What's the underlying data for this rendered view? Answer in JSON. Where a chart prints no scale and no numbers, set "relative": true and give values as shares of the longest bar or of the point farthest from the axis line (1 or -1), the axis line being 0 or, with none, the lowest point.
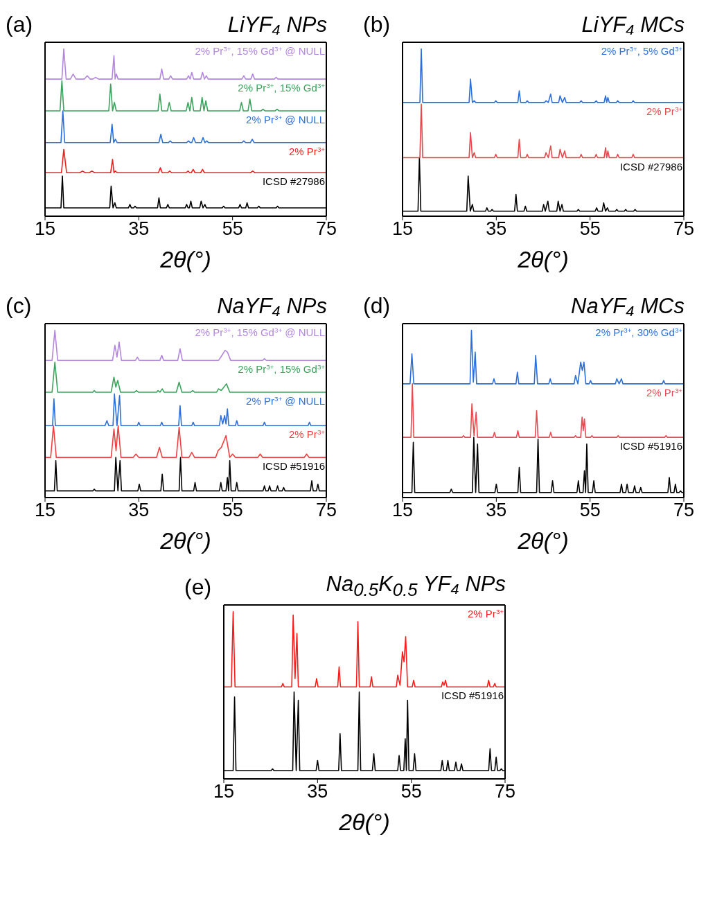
{
  "chart_data": [
    {
      "type": "line",
      "title": "LiYF₄ NPs",
      "annotations": [
        "(a)"
      ],
      "xlabel": "2θ(°)",
      "xlim": [
        15,
        75
      ],
      "xticks": [
        15,
        35,
        55,
        75
      ],
      "relative": true,
      "series": [
        {
          "name": "ICSD #27986",
          "color": "#000000",
          "x": [
            15,
            18.4,
            18.7,
            19.0,
            28.8,
            29.1,
            29.5,
            29.9,
            30.2,
            32.8,
            33.1,
            33.4,
            33.9,
            34.2,
            34.5,
            39.0,
            39.3,
            39.6,
            40.9,
            41.2,
            41.5,
            44.9,
            45.2,
            45.5,
            45.8,
            46.1,
            46.4,
            48.0,
            48.3,
            48.7,
            49.1,
            49.4,
            52.8,
            53.1,
            53.4,
            56.3,
            56.6,
            56.9,
            57.8,
            58.1,
            58.4,
            60.3,
            60.6,
            60.9,
            64.3,
            64.6,
            64.9,
            75
          ],
          "values": [
            0.05,
            0.05,
            0.24,
            0.05,
            0.05,
            0.18,
            0.05,
            0.08,
            0.05,
            0.05,
            0.07,
            0.05,
            0.05,
            0.06,
            0.05,
            0.05,
            0.11,
            0.05,
            0.05,
            0.07,
            0.05,
            0.05,
            0.07,
            0.05,
            0.05,
            0.09,
            0.05,
            0.05,
            0.09,
            0.05,
            0.07,
            0.05,
            0.05,
            0.06,
            0.05,
            0.05,
            0.07,
            0.05,
            0.05,
            0.08,
            0.05,
            0.05,
            0.06,
            0.05,
            0.05,
            0.06,
            0.05,
            0.05
          ]
        },
        {
          "name": "2% Pr$^{3+}$",
          "color": "#f21d1d",
          "x": [
            15,
            18.5,
            19.0,
            19.6,
            22.4,
            23.0,
            23.6,
            24.4,
            25.0,
            25.6,
            29.0,
            29.4,
            29.7,
            30.0,
            30.4,
            39.2,
            39.6,
            40.0,
            41.2,
            41.6,
            42.0,
            45.1,
            45.5,
            45.9,
            46.2,
            46.6,
            47.0,
            48.2,
            48.6,
            49.0,
            58.8,
            59.3,
            59.8,
            75
          ],
          "values": [
            0.26,
            0.26,
            0.4,
            0.26,
            0.26,
            0.27,
            0.26,
            0.26,
            0.27,
            0.26,
            0.26,
            0.34,
            0.26,
            0.27,
            0.26,
            0.26,
            0.29,
            0.26,
            0.26,
            0.27,
            0.26,
            0.26,
            0.27,
            0.26,
            0.26,
            0.28,
            0.26,
            0.26,
            0.28,
            0.26,
            0.26,
            0.27,
            0.26,
            0.26
          ]
        },
        {
          "name": "2% Pr$^{3+}$ @ NULL",
          "color": "#2a6fdb",
          "x": [
            15,
            18.4,
            18.8,
            19.2,
            28.9,
            29.3,
            29.65,
            30.0,
            30.4,
            39.3,
            39.7,
            40.1,
            41.3,
            41.7,
            42.1,
            45.2,
            45.6,
            46.0,
            46.3,
            46.7,
            47.1,
            48.3,
            48.7,
            49.1,
            49.5,
            49.9,
            57.0,
            57.4,
            57.8,
            58.8,
            59.2,
            59.6,
            75
          ],
          "values": [
            0.44,
            0.44,
            0.63,
            0.44,
            0.44,
            0.55,
            0.44,
            0.46,
            0.44,
            0.44,
            0.49,
            0.44,
            0.44,
            0.45,
            0.44,
            0.44,
            0.45,
            0.44,
            0.44,
            0.47,
            0.44,
            0.44,
            0.47,
            0.44,
            0.45,
            0.44,
            0.44,
            0.45,
            0.44,
            0.44,
            0.46,
            0.44,
            0.44
          ]
        },
        {
          "name": "2% Pr$^{3+}$, 15% Gd$^{3+}$",
          "color": "#3aa35c",
          "x": [
            15,
            18.2,
            18.6,
            19.0,
            28.6,
            29.0,
            29.4,
            29.8,
            30.2,
            39.1,
            39.5,
            39.9,
            41.1,
            41.5,
            41.9,
            45.1,
            45.5,
            45.9,
            46.3,
            46.7,
            48.1,
            48.5,
            48.9,
            49.3,
            49.7,
            56.5,
            56.9,
            57.3,
            58.3,
            58.7,
            59.1,
            61.1,
            61.5,
            61.9,
            64.1,
            64.5,
            64.9,
            75
          ],
          "values": [
            0.63,
            0.63,
            0.81,
            0.63,
            0.63,
            0.79,
            0.63,
            0.68,
            0.63,
            0.63,
            0.73,
            0.63,
            0.63,
            0.68,
            0.63,
            0.63,
            0.68,
            0.63,
            0.71,
            0.63,
            0.63,
            0.71,
            0.63,
            0.69,
            0.63,
            0.63,
            0.68,
            0.63,
            0.63,
            0.7,
            0.63,
            0.63,
            0.64,
            0.63,
            0.63,
            0.64,
            0.63,
            0.63
          ]
        },
        {
          "name": "2% Pr$^{3+}$, 15% Gd$^{3+}$ @ NULL",
          "color": "#b386e0",
          "x": [
            15,
            18.6,
            19.0,
            19.5,
            20.4,
            21.0,
            21.6,
            23.4,
            24.0,
            24.6,
            25.2,
            25.8,
            26.4,
            29.3,
            29.7,
            29.95,
            30.2,
            30.6,
            39.5,
            39.9,
            40.3,
            41.4,
            41.8,
            42.2,
            45.2,
            45.6,
            45.95,
            46.3,
            46.7,
            48.2,
            48.6,
            49.0,
            49.4,
            49.8,
            57.0,
            57.4,
            57.8,
            58.9,
            59.3,
            59.7,
            63.9,
            64.3,
            64.7,
            75
          ],
          "values": [
            0.82,
            0.82,
            1.0,
            0.82,
            0.82,
            0.85,
            0.82,
            0.82,
            0.84,
            0.82,
            0.82,
            0.83,
            0.82,
            0.82,
            0.96,
            0.82,
            0.85,
            0.82,
            0.82,
            0.88,
            0.82,
            0.82,
            0.84,
            0.82,
            0.82,
            0.84,
            0.82,
            0.86,
            0.82,
            0.82,
            0.86,
            0.82,
            0.84,
            0.82,
            0.82,
            0.84,
            0.82,
            0.82,
            0.85,
            0.82,
            0.82,
            0.83,
            0.82,
            0.82
          ]
        }
      ]
    },
    {
      "type": "line",
      "title": "LiYF₄ MCs",
      "annotations": [
        "(b)"
      ],
      "xlabel": "2θ(°)",
      "xlim": [
        15,
        75
      ],
      "xticks": [
        15,
        35,
        55,
        75
      ],
      "relative": true,
      "series": [
        {
          "name": "ICSD #27986",
          "color": "#000000",
          "x": [
            15,
            18.3,
            18.6,
            18.9,
            28.7,
            29.0,
            29.45,
            29.9,
            30.2,
            32.7,
            33.0,
            33.3,
            33.8,
            34.1,
            34.4,
            38.9,
            39.2,
            39.5,
            40.9,
            41.2,
            41.5,
            44.8,
            45.1,
            45.45,
            46.0,
            46.3,
            47.9,
            48.2,
            48.6,
            49.0,
            49.3,
            52.2,
            52.5,
            52.8,
            56.1,
            56.4,
            56.7,
            57.6,
            57.9,
            58.3,
            58.7,
            59.0,
            60.4,
            60.7,
            61.0,
            62.3,
            62.6,
            62.9,
            64.3,
            64.6,
            64.9,
            75
          ],
          "values": [
            0.03,
            0.03,
            0.35,
            0.03,
            0.03,
            0.24,
            0.03,
            0.07,
            0.03,
            0.03,
            0.05,
            0.03,
            0.03,
            0.04,
            0.03,
            0.03,
            0.13,
            0.03,
            0.03,
            0.06,
            0.03,
            0.03,
            0.07,
            0.03,
            0.09,
            0.03,
            0.03,
            0.09,
            0.03,
            0.07,
            0.03,
            0.03,
            0.04,
            0.03,
            0.03,
            0.05,
            0.03,
            0.03,
            0.08,
            0.03,
            0.05,
            0.03,
            0.03,
            0.04,
            0.03,
            0.03,
            0.04,
            0.03,
            0.03,
            0.04,
            0.03,
            0.03
          ]
        },
        {
          "name": "2% Pr$^{3+}$",
          "color": "#e8474c",
          "x": [
            15,
            18.7,
            19.0,
            19.3,
            29.2,
            29.5,
            29.9,
            30.3,
            30.6,
            34.6,
            34.9,
            35.2,
            39.6,
            39.9,
            40.2,
            41.3,
            41.6,
            41.9,
            45.3,
            45.6,
            46.1,
            46.6,
            46.9,
            48.3,
            48.6,
            49.1,
            49.6,
            49.9,
            52.8,
            53.1,
            53.4,
            56.0,
            56.3,
            56.6,
            58.0,
            58.3,
            58.55,
            58.8,
            59.1,
            60.6,
            60.9,
            61.2,
            63.9,
            64.2,
            64.5,
            75
          ],
          "values": [
            0.35,
            0.35,
            0.67,
            0.35,
            0.35,
            0.5,
            0.35,
            0.38,
            0.35,
            0.35,
            0.37,
            0.35,
            0.35,
            0.46,
            0.35,
            0.35,
            0.37,
            0.35,
            0.35,
            0.38,
            0.35,
            0.42,
            0.35,
            0.35,
            0.4,
            0.35,
            0.39,
            0.35,
            0.35,
            0.37,
            0.35,
            0.35,
            0.37,
            0.35,
            0.35,
            0.41,
            0.35,
            0.39,
            0.35,
            0.35,
            0.37,
            0.35,
            0.35,
            0.37,
            0.35,
            0.35
          ]
        },
        {
          "name": "2% Pr$^{3+}$, 5% Gd$^{3+}$",
          "color": "#2a6fdb",
          "x": [
            15,
            18.7,
            19.0,
            19.3,
            29.2,
            29.5,
            29.9,
            30.3,
            30.6,
            34.6,
            34.9,
            35.2,
            39.6,
            39.9,
            40.2,
            41.3,
            41.6,
            41.9,
            45.3,
            45.6,
            46.1,
            46.6,
            46.9,
            48.3,
            48.6,
            49.1,
            49.6,
            49.9,
            52.8,
            53.1,
            53.4,
            56.0,
            56.3,
            56.6,
            58.0,
            58.3,
            58.55,
            58.8,
            59.1,
            60.6,
            60.9,
            61.2,
            63.9,
            64.2,
            64.5,
            75
          ],
          "values": [
            0.68,
            0.68,
            1.0,
            0.68,
            0.68,
            0.82,
            0.68,
            0.69,
            0.68,
            0.68,
            0.69,
            0.68,
            0.68,
            0.75,
            0.68,
            0.68,
            0.69,
            0.68,
            0.68,
            0.69,
            0.68,
            0.73,
            0.68,
            0.68,
            0.72,
            0.68,
            0.71,
            0.68,
            0.68,
            0.69,
            0.68,
            0.68,
            0.69,
            0.68,
            0.68,
            0.72,
            0.68,
            0.71,
            0.68,
            0.68,
            0.69,
            0.68,
            0.68,
            0.69,
            0.68,
            0.68
          ]
        }
      ]
    },
    {
      "type": "line",
      "title": "NaYF₄ NPs",
      "annotations": [
        "(c)"
      ],
      "xlabel": "2θ(°)",
      "xlim": [
        15,
        75
      ],
      "xticks": [
        15,
        35,
        55,
        75
      ],
      "relative": true,
      "series": [
        {
          "name": "ICSD #51916",
          "color": "#000000",
          "x": [
            15,
            17.0,
            17.3,
            17.6,
            25.2,
            25.5,
            25.8,
            29.8,
            30.1,
            30.55,
            31.0,
            31.3,
            34.8,
            35.1,
            35.4,
            39.7,
            40.0,
            40.3,
            43.6,
            43.9,
            44.2,
            46.7,
            47.0,
            47.3,
            52.2,
            52.5,
            52.8,
            53.6,
            53.9,
            54.15,
            54.4,
            54.7,
            55.6,
            55.9,
            56.2,
            61.5,
            61.8,
            62.1,
            62.6,
            62.9,
            63.2,
            64.3,
            64.6,
            64.9,
            65.6,
            65.9,
            66.2,
            71.6,
            71.9,
            72.2,
            72.9,
            73.2,
            73.5,
            75
          ],
          "values": [
            0.04,
            0.04,
            0.22,
            0.04,
            0.04,
            0.05,
            0.04,
            0.04,
            0.24,
            0.04,
            0.22,
            0.04,
            0.04,
            0.08,
            0.04,
            0.04,
            0.14,
            0.04,
            0.04,
            0.24,
            0.04,
            0.04,
            0.09,
            0.04,
            0.04,
            0.09,
            0.04,
            0.04,
            0.12,
            0.04,
            0.22,
            0.04,
            0.04,
            0.09,
            0.04,
            0.04,
            0.07,
            0.04,
            0.04,
            0.07,
            0.04,
            0.04,
            0.07,
            0.04,
            0.04,
            0.06,
            0.04,
            0.04,
            0.1,
            0.04,
            0.04,
            0.08,
            0.04,
            0.04
          ]
        },
        {
          "name": "2% Pr$^{3+}$",
          "color": "#ef4040",
          "x": [
            15,
            16.2,
            16.8,
            17.4,
            29.1,
            29.7,
            30.15,
            30.6,
            31.2,
            33.8,
            34.4,
            35.0,
            38.8,
            39.4,
            40.0,
            43.0,
            43.6,
            44.2,
            45.7,
            46.3,
            46.9,
            51.4,
            51.9,
            52.6,
            53.6,
            54.4,
            55.0,
            55.6,
            60.4,
            60.9,
            61.4,
            70.3,
            70.8,
            71.3,
            75
          ],
          "values": [
            0.24,
            0.24,
            0.43,
            0.24,
            0.24,
            0.41,
            0.28,
            0.43,
            0.24,
            0.24,
            0.26,
            0.24,
            0.24,
            0.3,
            0.24,
            0.24,
            0.42,
            0.24,
            0.24,
            0.27,
            0.24,
            0.24,
            0.28,
            0.3,
            0.37,
            0.24,
            0.26,
            0.24,
            0.24,
            0.26,
            0.24,
            0.24,
            0.26,
            0.24,
            0.24
          ]
        },
        {
          "name": "2% Pr$^{3+}$ @ NULL",
          "color": "#2a6fdb",
          "x": [
            15,
            16.6,
            16.9,
            17.2,
            27.8,
            28.2,
            28.6,
            29.5,
            29.8,
            30.35,
            30.9,
            31.2,
            34.7,
            35.0,
            35.3,
            39.6,
            39.9,
            40.2,
            43.5,
            43.8,
            44.1,
            46.3,
            46.6,
            46.9,
            52.2,
            52.5,
            52.9,
            53.3,
            53.6,
            53.9,
            54.2,
            55.6,
            55.9,
            56.2,
            61.5,
            61.8,
            62.1,
            71.1,
            71.4,
            71.7,
            75
          ],
          "values": [
            0.43,
            0.43,
            0.59,
            0.43,
            0.43,
            0.46,
            0.43,
            0.43,
            0.62,
            0.43,
            0.61,
            0.43,
            0.43,
            0.45,
            0.43,
            0.43,
            0.45,
            0.43,
            0.43,
            0.55,
            0.43,
            0.43,
            0.45,
            0.43,
            0.43,
            0.49,
            0.44,
            0.49,
            0.44,
            0.53,
            0.43,
            0.43,
            0.46,
            0.43,
            0.43,
            0.45,
            0.43,
            0.43,
            0.45,
            0.43,
            0.43
          ]
        },
        {
          "name": "2% Pr$^{3+}$, 15% Gd$^{3+}$",
          "color": "#3aa35c",
          "x": [
            15,
            16.5,
            17.1,
            17.7,
            25.2,
            25.5,
            25.8,
            29.1,
            29.7,
            30.1,
            30.5,
            31.1,
            34.1,
            34.5,
            34.9,
            38.8,
            39.1,
            39.5,
            40.0,
            40.4,
            43.0,
            43.6,
            44.2,
            46.1,
            46.5,
            46.9,
            51.6,
            52.0,
            52.6,
            53.7,
            54.4,
            75
          ],
          "values": [
            0.63,
            0.63,
            0.81,
            0.63,
            0.63,
            0.64,
            0.63,
            0.63,
            0.72,
            0.66,
            0.7,
            0.63,
            0.63,
            0.64,
            0.63,
            0.63,
            0.64,
            0.63,
            0.65,
            0.63,
            0.63,
            0.69,
            0.63,
            0.63,
            0.64,
            0.63,
            0.63,
            0.65,
            0.64,
            0.68,
            0.63,
            0.63
          ]
        },
        {
          "name": "2% Pr$^{3+}$, 15% Gd$^{3+}$ @ NULL",
          "color": "#b386e0",
          "x": [
            15,
            16.5,
            17.1,
            17.7,
            29.4,
            29.9,
            30.35,
            30.8,
            31.3,
            34.3,
            34.7,
            35.1,
            39.5,
            39.9,
            40.3,
            43.3,
            43.8,
            44.3,
            52.0,
            52.5,
            53.4,
            53.9,
            54.6,
            61.4,
            61.8,
            62.2,
            75
          ],
          "values": [
            0.82,
            0.82,
            1.0,
            0.82,
            0.82,
            0.91,
            0.84,
            0.93,
            0.82,
            0.82,
            0.84,
            0.82,
            0.82,
            0.85,
            0.82,
            0.82,
            0.89,
            0.82,
            0.82,
            0.84,
            0.88,
            0.87,
            0.82,
            0.82,
            0.83,
            0.82,
            0.82
          ]
        }
      ]
    },
    {
      "type": "line",
      "title": "NaYF₄ MCs",
      "annotations": [
        "(d)"
      ],
      "xlabel": "2θ(°)",
      "xlim": [
        15,
        75
      ],
      "xticks": [
        15,
        35,
        55,
        75
      ],
      "relative": true,
      "series": [
        {
          "name": "ICSD #51916",
          "color": "#000000",
          "x": [
            15,
            17.0,
            17.3,
            17.6,
            25.1,
            25.4,
            25.7,
            29.9,
            30.2,
            30.6,
            31.0,
            31.3,
            34.7,
            35.0,
            35.3,
            39.6,
            39.9,
            40.2,
            43.6,
            43.9,
            44.2,
            46.7,
            47.0,
            47.3,
            52.2,
            52.5,
            52.8,
            53.5,
            53.8,
            54.05,
            54.3,
            54.6,
            55.5,
            55.8,
            56.1,
            61.4,
            61.7,
            62.0,
            62.6,
            62.9,
            63.2,
            64.2,
            64.5,
            64.8,
            65.5,
            65.8,
            66.1,
            71.6,
            71.9,
            72.2,
            72.9,
            73.2,
            73.5,
            74.0,
            74.3,
            74.6,
            75
          ],
          "values": [
            0.03,
            0.03,
            0.33,
            0.03,
            0.03,
            0.05,
            0.03,
            0.03,
            0.36,
            0.03,
            0.32,
            0.03,
            0.03,
            0.08,
            0.03,
            0.03,
            0.18,
            0.03,
            0.03,
            0.35,
            0.03,
            0.03,
            0.1,
            0.03,
            0.03,
            0.1,
            0.03,
            0.03,
            0.16,
            0.03,
            0.32,
            0.03,
            0.03,
            0.1,
            0.03,
            0.03,
            0.08,
            0.03,
            0.03,
            0.08,
            0.03,
            0.03,
            0.07,
            0.03,
            0.03,
            0.06,
            0.03,
            0.03,
            0.12,
            0.03,
            0.03,
            0.08,
            0.03,
            0.03,
            0.04,
            0.03,
            0.03
          ]
        },
        {
          "name": "2% Pr$^{3+}$",
          "color": "#e84a50",
          "x": [
            15,
            16.8,
            17.1,
            17.4,
            27.7,
            28.0,
            28.3,
            29.5,
            29.8,
            30.25,
            30.7,
            31.0,
            34.3,
            34.6,
            34.9,
            39.3,
            39.6,
            39.9,
            43.3,
            43.6,
            43.9,
            46.3,
            46.6,
            46.9,
            51.6,
            51.9,
            52.2,
            53.0,
            53.3,
            53.55,
            53.8,
            54.1,
            55.1,
            55.4,
            55.7,
            60.7,
            61.0,
            61.3,
            70.9,
            71.2,
            71.5,
            75
          ],
          "values": [
            0.36,
            0.36,
            0.68,
            0.36,
            0.36,
            0.37,
            0.36,
            0.36,
            0.56,
            0.37,
            0.51,
            0.36,
            0.36,
            0.39,
            0.36,
            0.36,
            0.4,
            0.36,
            0.36,
            0.52,
            0.36,
            0.36,
            0.39,
            0.36,
            0.36,
            0.37,
            0.36,
            0.36,
            0.48,
            0.4,
            0.47,
            0.36,
            0.36,
            0.37,
            0.36,
            0.36,
            0.37,
            0.36,
            0.36,
            0.37,
            0.36,
            0.36
          ]
        },
        {
          "name": "2% Pr$^{3+}$, 30% Gd$^{3+}$",
          "color": "#2a6fdb",
          "x": [
            15,
            16.6,
            17.0,
            17.4,
            29.4,
            29.7,
            30.1,
            30.5,
            30.8,
            34.2,
            34.5,
            34.8,
            39.2,
            39.5,
            39.8,
            43.1,
            43.4,
            43.8,
            46.2,
            46.5,
            46.8,
            51.6,
            51.9,
            52.4,
            53.0,
            53.35,
            53.7,
            54.1,
            54.8,
            55.1,
            55.4,
            60.4,
            60.7,
            61.2,
            61.7,
            62.0,
            70.4,
            70.7,
            71.0,
            75
          ],
          "values": [
            0.68,
            0.68,
            0.86,
            0.68,
            0.68,
            1.0,
            0.69,
            0.87,
            0.68,
            0.68,
            0.71,
            0.68,
            0.68,
            0.75,
            0.68,
            0.68,
            0.85,
            0.68,
            0.68,
            0.71,
            0.68,
            0.68,
            0.73,
            0.68,
            0.81,
            0.76,
            0.81,
            0.68,
            0.68,
            0.7,
            0.68,
            0.68,
            0.71,
            0.68,
            0.71,
            0.68,
            0.68,
            0.7,
            0.68,
            0.68
          ]
        }
      ]
    },
    {
      "type": "line",
      "title": "Na$_{0.5}$K$_{0.5}$ YF₄ NPs",
      "annotations": [
        "(e)"
      ],
      "xlabel": "2θ(°)",
      "xlim": [
        15,
        75
      ],
      "xticks": [
        15,
        35,
        55,
        75
      ],
      "relative": true,
      "series": [
        {
          "name": "ICSD #51916",
          "color": "#000000",
          "x": [
            15,
            17.0,
            17.3,
            17.6,
            25.1,
            25.4,
            25.7,
            29.7,
            30.0,
            30.45,
            30.9,
            31.2,
            34.7,
            35.0,
            35.3,
            39.5,
            39.8,
            40.1,
            43.6,
            43.9,
            44.2,
            46.7,
            47.0,
            47.3,
            52.1,
            52.4,
            52.7,
            53.4,
            53.7,
            53.95,
            54.2,
            54.5,
            55.4,
            55.7,
            56.0,
            61.3,
            61.6,
            61.9,
            62.5,
            62.8,
            63.1,
            64.2,
            64.5,
            64.8,
            65.4,
            65.7,
            66.0,
            71.5,
            71.8,
            72.1,
            72.8,
            73.1,
            73.4,
            73.9,
            74.2,
            74.5,
            75
          ],
          "values": [
            0.05,
            0.05,
            0.49,
            0.05,
            0.05,
            0.06,
            0.05,
            0.05,
            0.52,
            0.05,
            0.47,
            0.05,
            0.05,
            0.11,
            0.05,
            0.05,
            0.27,
            0.05,
            0.05,
            0.52,
            0.05,
            0.05,
            0.15,
            0.05,
            0.05,
            0.14,
            0.05,
            0.05,
            0.24,
            0.05,
            0.47,
            0.05,
            0.05,
            0.15,
            0.05,
            0.05,
            0.11,
            0.05,
            0.05,
            0.11,
            0.05,
            0.05,
            0.1,
            0.05,
            0.05,
            0.09,
            0.05,
            0.05,
            0.18,
            0.05,
            0.05,
            0.13,
            0.05,
            0.05,
            0.06,
            0.05,
            0.05
          ]
        },
        {
          "name": "2% Pr$^{3+}$",
          "color": "#ff1a1a",
          "x": [
            15,
            16.6,
            17.0,
            17.4,
            27.3,
            27.6,
            27.9,
            29.5,
            29.8,
            30.2,
            30.6,
            30.9,
            34.5,
            34.8,
            35.1,
            39.3,
            39.6,
            39.9,
            43.3,
            43.6,
            43.9,
            46.2,
            46.5,
            46.8,
            51.8,
            52.1,
            52.6,
            53.1,
            53.45,
            53.8,
            54.2,
            55.2,
            55.5,
            55.8,
            61.4,
            61.7,
            62.0,
            62.3,
            62.6,
            71.2,
            71.5,
            71.8,
            72.5,
            72.8,
            73.1,
            75
          ],
          "values": [
            0.55,
            0.55,
            1.0,
            0.55,
            0.55,
            0.57,
            0.55,
            0.55,
            0.98,
            0.6,
            0.87,
            0.55,
            0.55,
            0.6,
            0.55,
            0.55,
            0.67,
            0.55,
            0.55,
            0.94,
            0.55,
            0.55,
            0.61,
            0.55,
            0.55,
            0.62,
            0.56,
            0.76,
            0.7,
            0.85,
            0.55,
            0.55,
            0.59,
            0.55,
            0.55,
            0.58,
            0.56,
            0.59,
            0.55,
            0.55,
            0.59,
            0.55,
            0.55,
            0.57,
            0.55,
            0.55
          ]
        }
      ]
    }
  ]
}
